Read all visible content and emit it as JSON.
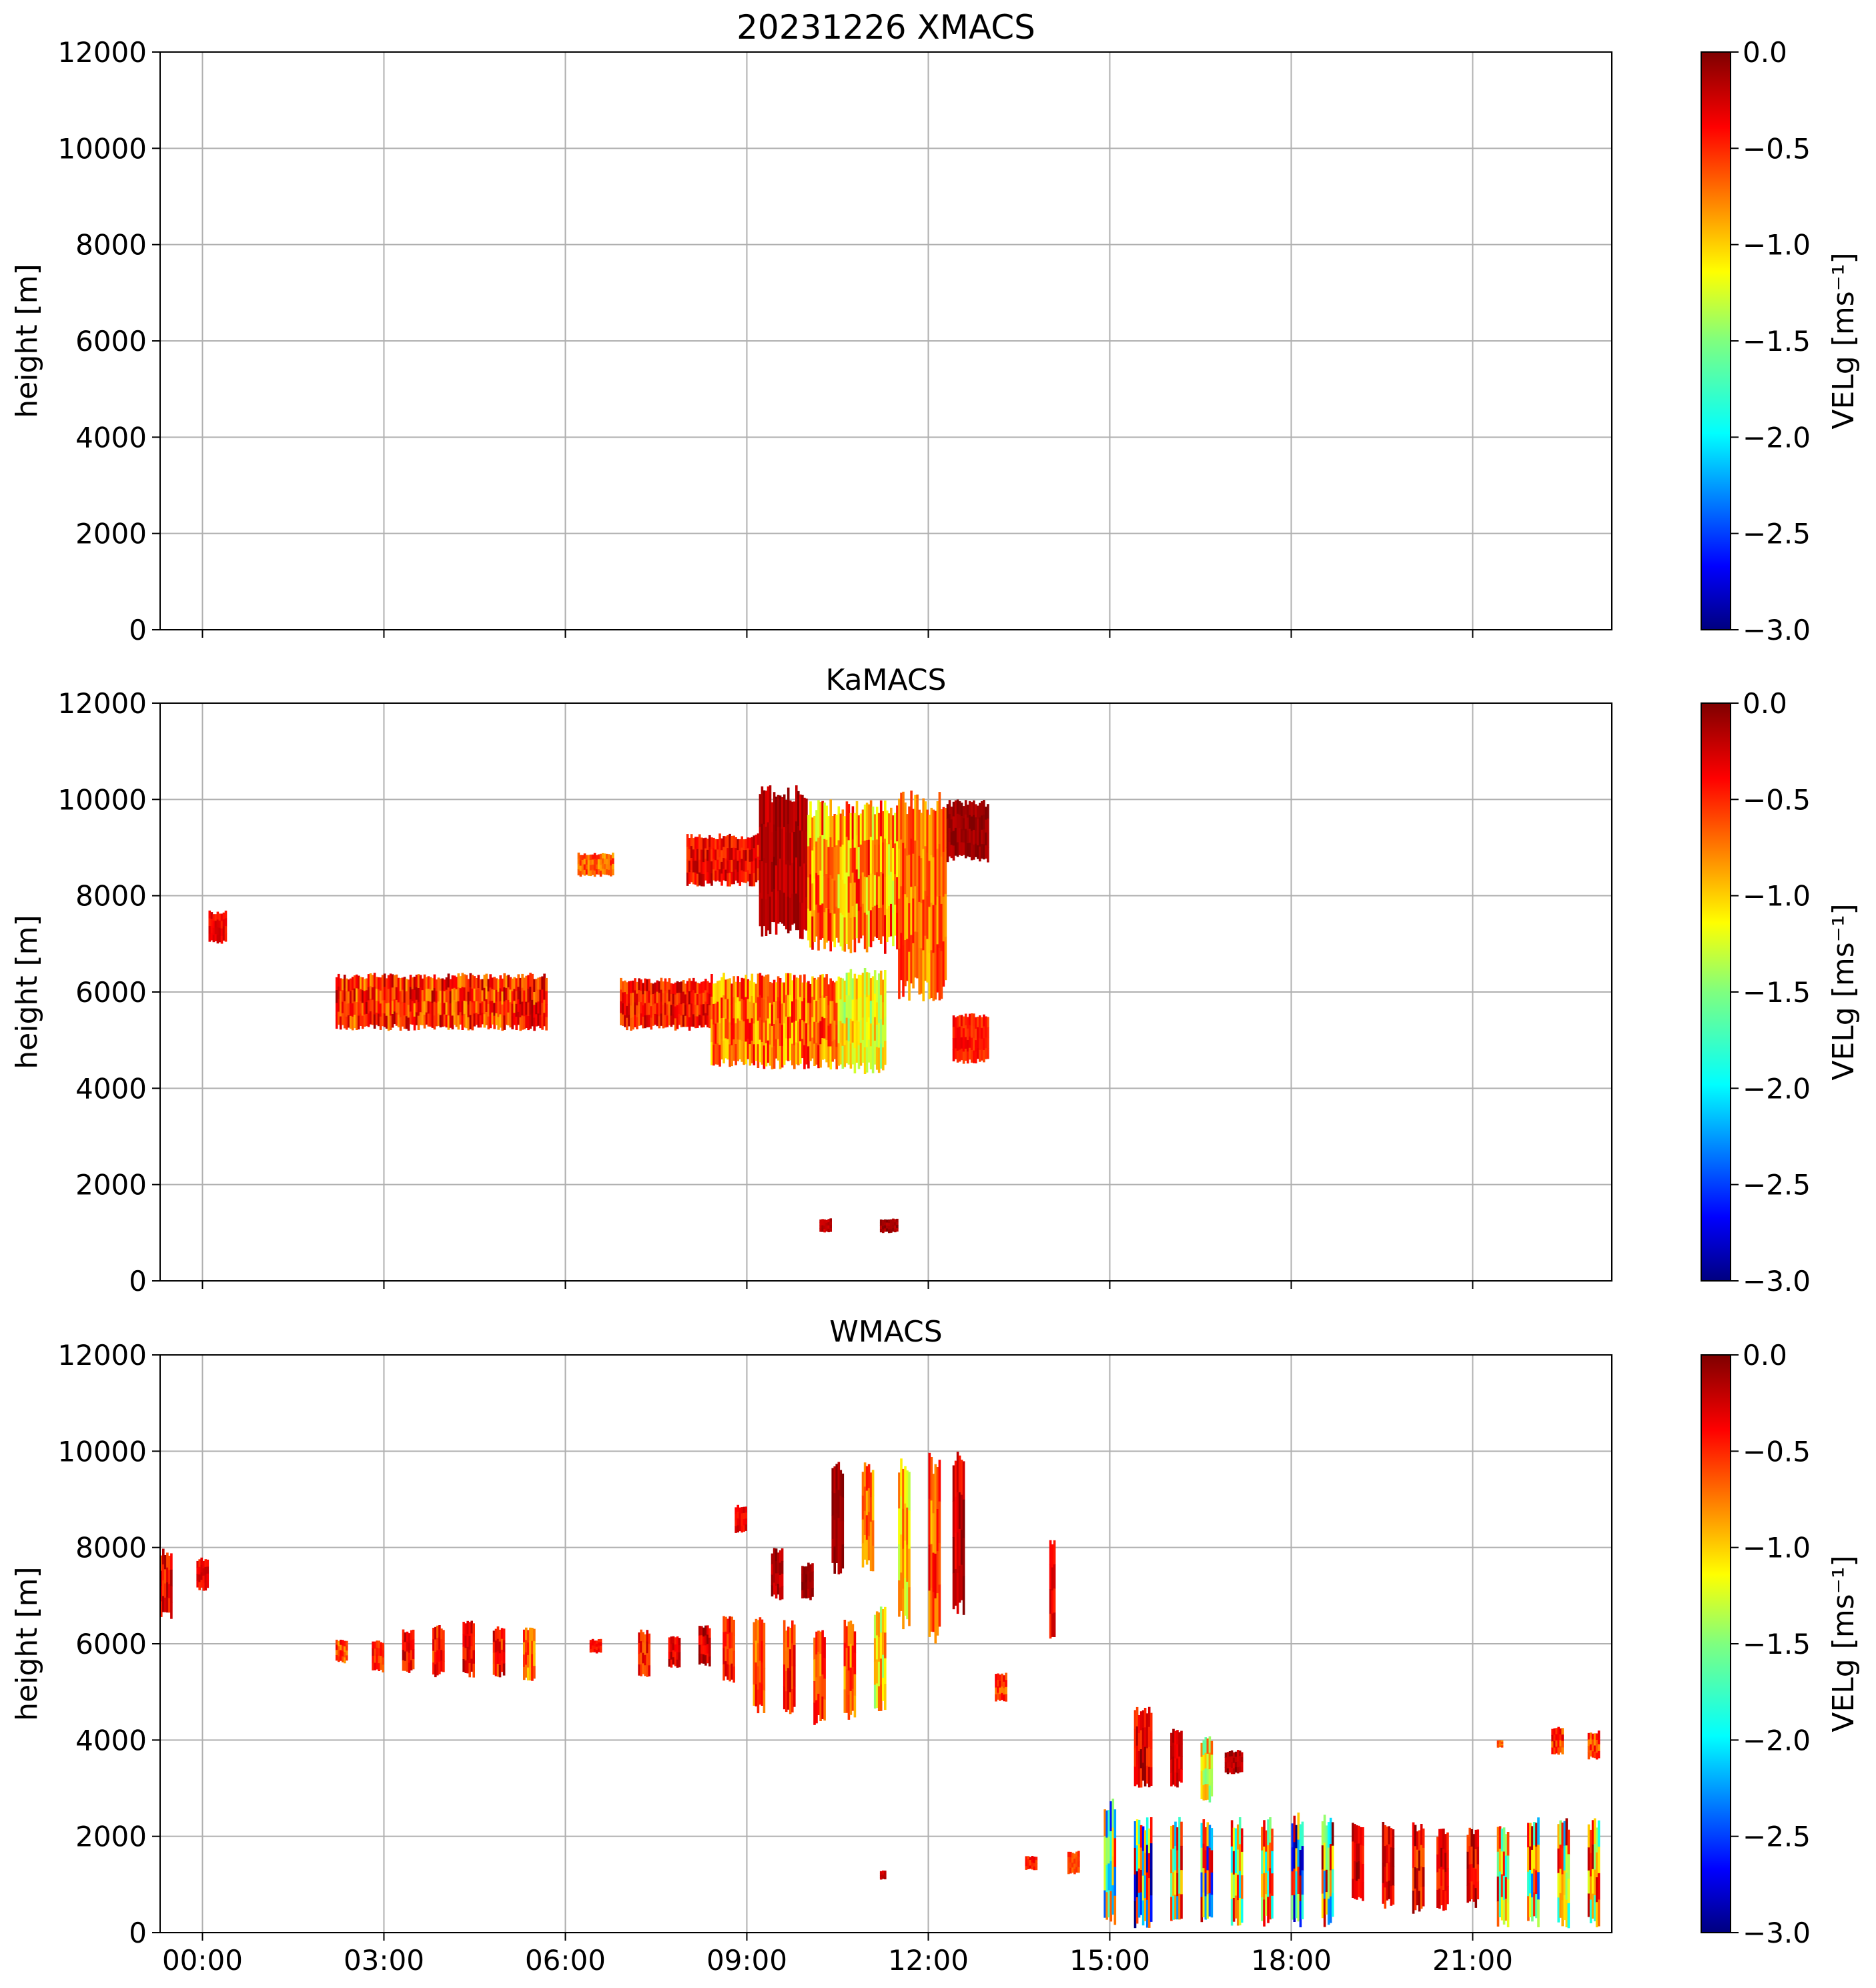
{
  "colormap": {
    "name": "jet",
    "stops": [
      "#00007f",
      "#0000ff",
      "#007fff",
      "#00ffff",
      "#7fff7f",
      "#ffff00",
      "#ff7f00",
      "#ff0000",
      "#7f0000"
    ]
  },
  "chart_data": [
    {
      "type": "heatmap",
      "id": "xmacs",
      "title": "20231226 XMACS",
      "xlabel": "",
      "ylabel": "height [m]",
      "xlim_hours": [
        -0.7,
        23.3
      ],
      "ylim": [
        0,
        12000
      ],
      "y_ticks": [
        "0",
        "2000",
        "4000",
        "6000",
        "8000",
        "10000",
        "12000"
      ],
      "x_ticks": [],
      "grid": true,
      "colorbar": {
        "label": "VELg [ms⁻¹]",
        "range": [
          -3.0,
          0.0
        ],
        "ticks": [
          "−3.0",
          "−2.5",
          "−2.0",
          "−1.5",
          "−1.0",
          "−0.5",
          "0.0"
        ]
      },
      "patches": []
    },
    {
      "type": "heatmap",
      "id": "kamacs",
      "title": "KaMACS",
      "xlabel": "",
      "ylabel": "height [m]",
      "xlim_hours": [
        -0.7,
        23.3
      ],
      "ylim": [
        0,
        12000
      ],
      "y_ticks": [
        "0",
        "2000",
        "4000",
        "6000",
        "8000",
        "10000",
        "12000"
      ],
      "x_ticks": [],
      "grid": true,
      "colorbar": {
        "label": "VELg [ms⁻¹]",
        "range": [
          -3.0,
          0.0
        ],
        "ticks": [
          "−3.0",
          "−2.5",
          "−2.0",
          "−1.5",
          "−1.0",
          "−0.5",
          "0.0"
        ]
      },
      "patches": [
        {
          "t0": 2.2,
          "t1": 5.7,
          "h0": 5200,
          "h1": 6400,
          "vmin": -0.9,
          "vmax": -0.1
        },
        {
          "t0": 6.2,
          "t1": 6.8,
          "h0": 8400,
          "h1": 8900,
          "vmin": -0.9,
          "vmax": -0.4
        },
        {
          "t0": 6.9,
          "t1": 8.4,
          "h0": 5200,
          "h1": 6300,
          "vmin": -0.7,
          "vmax": -0.1
        },
        {
          "t0": 8.4,
          "t1": 10.5,
          "h0": 4400,
          "h1": 6400,
          "vmin": -1.1,
          "vmax": -0.3
        },
        {
          "t0": 10.5,
          "t1": 11.3,
          "h0": 4300,
          "h1": 6500,
          "vmin": -1.5,
          "vmax": -0.8
        },
        {
          "t0": 8.0,
          "t1": 9.2,
          "h0": 8200,
          "h1": 9300,
          "vmin": -0.6,
          "vmax": -0.1
        },
        {
          "t0": 9.2,
          "t1": 10.0,
          "h0": 7100,
          "h1": 10300,
          "vmin": -0.3,
          "vmax": 0.0
        },
        {
          "t0": 10.0,
          "t1": 11.5,
          "h0": 6800,
          "h1": 10000,
          "vmin": -1.3,
          "vmax": -0.3
        },
        {
          "t0": 11.5,
          "t1": 12.3,
          "h0": 5800,
          "h1": 10200,
          "vmin": -1.0,
          "vmax": -0.4
        },
        {
          "t0": 12.3,
          "t1": 13.0,
          "h0": 8700,
          "h1": 10000,
          "vmin": -0.2,
          "vmax": 0.0
        },
        {
          "t0": 12.4,
          "t1": 13.0,
          "h0": 4500,
          "h1": 5600,
          "vmin": -0.6,
          "vmax": -0.3
        },
        {
          "t0": 0.1,
          "t1": 0.4,
          "h0": 7000,
          "h1": 7700,
          "vmin": -0.5,
          "vmax": -0.2
        },
        {
          "t0": 10.2,
          "t1": 10.4,
          "h0": 1000,
          "h1": 1300,
          "vmin": -0.3,
          "vmax": -0.1
        },
        {
          "t0": 11.2,
          "t1": 11.5,
          "h0": 1000,
          "h1": 1300,
          "vmin": -0.2,
          "vmax": 0.0
        }
      ]
    },
    {
      "type": "heatmap",
      "id": "wmacs",
      "title": "WMACS",
      "xlabel": "",
      "ylabel": "height [m]",
      "xlim_hours": [
        -0.7,
        23.3
      ],
      "ylim": [
        0,
        12000
      ],
      "y_ticks": [
        "0",
        "2000",
        "4000",
        "6000",
        "8000",
        "10000",
        "12000"
      ],
      "x_ticks": [
        {
          "h": 0,
          "label": "00:00"
        },
        {
          "h": 3,
          "label": "03:00"
        },
        {
          "h": 6,
          "label": "06:00"
        },
        {
          "h": 9,
          "label": "09:00"
        },
        {
          "h": 12,
          "label": "12:00"
        },
        {
          "h": 15,
          "label": "15:00"
        },
        {
          "h": 18,
          "label": "18:00"
        },
        {
          "h": 21,
          "label": "21:00"
        }
      ],
      "grid": true,
      "colorbar": {
        "label": "VELg [ms⁻¹]",
        "range": [
          -3.0,
          0.0
        ],
        "ticks": [
          "−3.0",
          "−2.5",
          "−2.0",
          "−1.5",
          "−1.0",
          "−0.5",
          "0.0"
        ]
      },
      "patches": [
        {
          "t0": -0.7,
          "t1": -0.5,
          "h0": 6500,
          "h1": 8000,
          "vmin": -0.6,
          "vmax": -0.1
        },
        {
          "t0": -0.1,
          "t1": 0.1,
          "h0": 7100,
          "h1": 7800,
          "vmin": -0.5,
          "vmax": -0.2
        },
        {
          "t0": 2.2,
          "t1": 2.4,
          "h0": 5600,
          "h1": 6100,
          "vmin": -0.9,
          "vmax": -0.3
        },
        {
          "t0": 2.8,
          "t1": 3.0,
          "h0": 5400,
          "h1": 6100,
          "vmin": -0.7,
          "vmax": -0.2
        },
        {
          "t0": 3.3,
          "t1": 3.5,
          "h0": 5400,
          "h1": 6300,
          "vmin": -0.6,
          "vmax": -0.1
        },
        {
          "t0": 3.8,
          "t1": 4.0,
          "h0": 5300,
          "h1": 6400,
          "vmin": -0.7,
          "vmax": -0.2
        },
        {
          "t0": 4.3,
          "t1": 4.5,
          "h0": 5300,
          "h1": 6500,
          "vmin": -0.6,
          "vmax": -0.1
        },
        {
          "t0": 4.8,
          "t1": 5.0,
          "h0": 5300,
          "h1": 6400,
          "vmin": -0.7,
          "vmax": -0.1
        },
        {
          "t0": 5.3,
          "t1": 5.5,
          "h0": 5200,
          "h1": 6400,
          "vmin": -1.0,
          "vmax": -0.4
        },
        {
          "t0": 6.4,
          "t1": 6.6,
          "h0": 5800,
          "h1": 6100,
          "vmin": -0.5,
          "vmax": -0.3
        },
        {
          "t0": 7.2,
          "t1": 7.4,
          "h0": 5300,
          "h1": 6300,
          "vmin": -0.7,
          "vmax": -0.2
        },
        {
          "t0": 7.7,
          "t1": 7.9,
          "h0": 5500,
          "h1": 6200,
          "vmin": -0.5,
          "vmax": -0.1
        },
        {
          "t0": 8.2,
          "t1": 8.4,
          "h0": 5500,
          "h1": 6400,
          "vmin": -0.5,
          "vmax": 0.0
        },
        {
          "t0": 8.6,
          "t1": 8.8,
          "h0": 5200,
          "h1": 6600,
          "vmin": -0.7,
          "vmax": -0.2
        },
        {
          "t0": 9.1,
          "t1": 9.3,
          "h0": 4500,
          "h1": 6600,
          "vmin": -0.9,
          "vmax": -0.3
        },
        {
          "t0": 9.6,
          "t1": 9.8,
          "h0": 4500,
          "h1": 6500,
          "vmin": -0.8,
          "vmax": -0.2
        },
        {
          "t0": 10.1,
          "t1": 10.3,
          "h0": 4300,
          "h1": 6300,
          "vmin": -0.9,
          "vmax": -0.3
        },
        {
          "t0": 10.6,
          "t1": 10.8,
          "h0": 4400,
          "h1": 6500,
          "vmin": -1.0,
          "vmax": -0.3
        },
        {
          "t0": 11.1,
          "t1": 11.3,
          "h0": 4600,
          "h1": 6800,
          "vmin": -1.5,
          "vmax": -0.6
        },
        {
          "t0": 8.8,
          "t1": 9.0,
          "h0": 8300,
          "h1": 8900,
          "vmin": -0.5,
          "vmax": -0.2
        },
        {
          "t0": 9.4,
          "t1": 9.6,
          "h0": 6900,
          "h1": 8000,
          "vmin": -0.3,
          "vmax": 0.0
        },
        {
          "t0": 9.9,
          "t1": 10.1,
          "h0": 6900,
          "h1": 7700,
          "vmin": -0.2,
          "vmax": 0.0
        },
        {
          "t0": 10.4,
          "t1": 10.6,
          "h0": 7400,
          "h1": 9800,
          "vmin": -0.2,
          "vmax": 0.0
        },
        {
          "t0": 10.9,
          "t1": 11.1,
          "h0": 7500,
          "h1": 9800,
          "vmin": -1.0,
          "vmax": -0.4
        },
        {
          "t0": 11.5,
          "t1": 11.7,
          "h0": 6300,
          "h1": 9900,
          "vmin": -1.4,
          "vmax": -0.6
        },
        {
          "t0": 12.0,
          "t1": 12.2,
          "h0": 6000,
          "h1": 10000,
          "vmin": -1.0,
          "vmax": -0.3
        },
        {
          "t0": 12.4,
          "t1": 12.6,
          "h0": 6500,
          "h1": 10000,
          "vmin": -0.5,
          "vmax": 0.0
        },
        {
          "t0": 13.1,
          "t1": 13.3,
          "h0": 4800,
          "h1": 5400,
          "vmin": -0.8,
          "vmax": -0.3
        },
        {
          "t0": 14.0,
          "t1": 14.1,
          "h0": 6100,
          "h1": 8200,
          "vmin": -0.5,
          "vmax": -0.2
        },
        {
          "t0": 13.6,
          "t1": 13.8,
          "h0": 1300,
          "h1": 1600,
          "vmin": -0.6,
          "vmax": -0.3
        },
        {
          "t0": 14.3,
          "t1": 14.5,
          "h0": 1200,
          "h1": 1700,
          "vmin": -0.7,
          "vmax": -0.4
        },
        {
          "t0": 14.9,
          "t1": 15.1,
          "h0": 100,
          "h1": 2800,
          "vmin": -2.6,
          "vmax": -0.3
        },
        {
          "t0": 15.4,
          "t1": 15.7,
          "h0": 3000,
          "h1": 4700,
          "vmin": -0.6,
          "vmax": 0.0
        },
        {
          "t0": 15.4,
          "t1": 15.7,
          "h0": 100,
          "h1": 2400,
          "vmin": -3.0,
          "vmax": -0.2
        },
        {
          "t0": 16.0,
          "t1": 16.2,
          "h0": 3000,
          "h1": 4300,
          "vmin": -0.4,
          "vmax": -0.1
        },
        {
          "t0": 16.0,
          "t1": 16.2,
          "h0": 100,
          "h1": 2400,
          "vmin": -2.3,
          "vmax": -0.1
        },
        {
          "t0": 16.5,
          "t1": 16.7,
          "h0": 2700,
          "h1": 4100,
          "vmin": -1.6,
          "vmax": -0.6
        },
        {
          "t0": 16.5,
          "t1": 16.7,
          "h0": 100,
          "h1": 2400,
          "vmin": -2.6,
          "vmax": -0.1
        },
        {
          "t0": 16.9,
          "t1": 17.2,
          "h0": 3300,
          "h1": 3800,
          "vmin": -0.3,
          "vmax": 0.0
        },
        {
          "t0": 17.0,
          "t1": 17.2,
          "h0": 100,
          "h1": 2400,
          "vmin": -2.1,
          "vmax": -0.2
        },
        {
          "t0": 17.5,
          "t1": 17.7,
          "h0": 100,
          "h1": 2400,
          "vmin": -2.2,
          "vmax": -0.1
        },
        {
          "t0": 18.0,
          "t1": 18.2,
          "h0": 100,
          "h1": 2500,
          "vmin": -3.0,
          "vmax": -0.1
        },
        {
          "t0": 18.5,
          "t1": 18.7,
          "h0": 100,
          "h1": 2500,
          "vmin": -2.3,
          "vmax": 0.0
        },
        {
          "t0": 19.0,
          "t1": 19.2,
          "h0": 600,
          "h1": 2300,
          "vmin": -0.5,
          "vmax": 0.0
        },
        {
          "t0": 19.5,
          "t1": 19.7,
          "h0": 500,
          "h1": 2300,
          "vmin": -0.6,
          "vmax": 0.0
        },
        {
          "t0": 20.0,
          "t1": 20.2,
          "h0": 400,
          "h1": 2300,
          "vmin": -0.7,
          "vmax": 0.0
        },
        {
          "t0": 20.4,
          "t1": 20.6,
          "h0": 400,
          "h1": 2200,
          "vmin": -0.6,
          "vmax": 0.0
        },
        {
          "t0": 20.9,
          "t1": 21.1,
          "h0": 500,
          "h1": 2200,
          "vmin": -0.6,
          "vmax": 0.0
        },
        {
          "t0": 21.4,
          "t1": 21.6,
          "h0": 100,
          "h1": 2300,
          "vmin": -1.9,
          "vmax": -0.1
        },
        {
          "t0": 21.9,
          "t1": 22.1,
          "h0": 100,
          "h1": 2400,
          "vmin": -2.4,
          "vmax": -0.1
        },
        {
          "t0": 22.4,
          "t1": 22.6,
          "h0": 100,
          "h1": 2400,
          "vmin": -2.4,
          "vmax": -0.1
        },
        {
          "t0": 22.9,
          "t1": 23.1,
          "h0": 100,
          "h1": 2400,
          "vmin": -1.9,
          "vmax": -0.1
        },
        {
          "t0": 22.3,
          "t1": 22.5,
          "h0": 3700,
          "h1": 4300,
          "vmin": -0.8,
          "vmax": -0.2
        },
        {
          "t0": 22.9,
          "t1": 23.1,
          "h0": 3600,
          "h1": 4200,
          "vmin": -0.8,
          "vmax": -0.3
        },
        {
          "t0": 21.4,
          "t1": 21.5,
          "h0": 3850,
          "h1": 4000,
          "vmin": -0.8,
          "vmax": -0.5
        },
        {
          "t0": 11.2,
          "t1": 11.3,
          "h0": 1100,
          "h1": 1300,
          "vmin": -0.3,
          "vmax": -0.1
        }
      ]
    }
  ]
}
